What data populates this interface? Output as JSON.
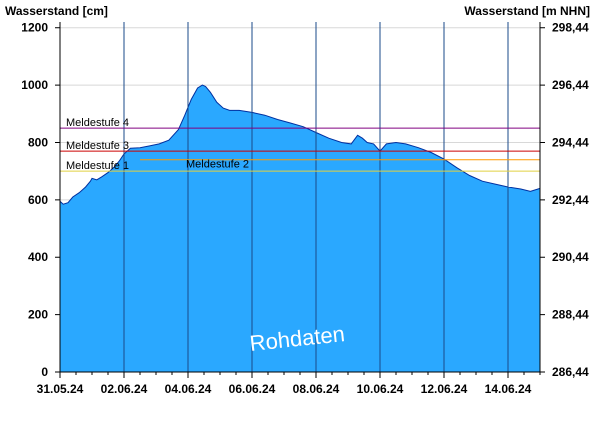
{
  "chart_data": {
    "type": "area",
    "left_axis_title": "Wasserstand [cm]",
    "right_axis_title": "Wasserstand [m NHN]",
    "watermark": "Rohdaten",
    "ylim": [
      0,
      1220
    ],
    "y_ticks": [
      0,
      200,
      400,
      600,
      800,
      1000,
      1200
    ],
    "y_tick_labels": [
      "0",
      "200",
      "400",
      "600",
      "800",
      "1000",
      "1200"
    ],
    "right_ticks": [
      {
        "value": 0,
        "label": "286,44"
      },
      {
        "value": 200,
        "label": "288,44"
      },
      {
        "value": 400,
        "label": "290,44"
      },
      {
        "value": 600,
        "label": "292,44"
      },
      {
        "value": 800,
        "label": "294,44"
      },
      {
        "value": 1000,
        "label": "296,44"
      },
      {
        "value": 1200,
        "label": "298,44"
      }
    ],
    "x_range": [
      0,
      15
    ],
    "x_ticks": [
      0,
      2,
      4,
      6,
      8,
      10,
      12,
      14
    ],
    "x_tick_labels": [
      "31.05.24",
      "02.06.24",
      "04.06.24",
      "06.06.24",
      "08.06.24",
      "10.06.24",
      "12.06.24",
      "14.06.24"
    ],
    "x_minor_step": 0.5,
    "series": [
      {
        "color": "#2aa8ff",
        "x": [
          0.0,
          0.1,
          0.25,
          0.4,
          0.6,
          0.8,
          0.95,
          1.0,
          1.15,
          1.3,
          1.5,
          1.7,
          1.85,
          2.0,
          2.2,
          2.5,
          2.8,
          3.1,
          3.4,
          3.7,
          3.9,
          4.1,
          4.3,
          4.45,
          4.55,
          4.7,
          4.9,
          5.1,
          5.3,
          5.6,
          6.0,
          6.4,
          6.8,
          7.2,
          7.6,
          8.0,
          8.4,
          8.8,
          9.1,
          9.3,
          9.45,
          9.6,
          9.8,
          10.0,
          10.2,
          10.5,
          10.8,
          11.2,
          11.6,
          12.0,
          12.4,
          12.8,
          13.2,
          13.6,
          14.0,
          14.4,
          14.7,
          15.0
        ],
        "values": [
          595,
          585,
          590,
          610,
          625,
          645,
          665,
          675,
          670,
          680,
          695,
          715,
          735,
          760,
          780,
          782,
          788,
          795,
          808,
          845,
          895,
          950,
          990,
          1000,
          995,
          975,
          940,
          920,
          912,
          912,
          905,
          895,
          880,
          868,
          855,
          835,
          815,
          800,
          795,
          825,
          815,
          800,
          795,
          770,
          795,
          800,
          795,
          782,
          765,
          742,
          712,
          685,
          665,
          655,
          645,
          638,
          630,
          640
        ]
      }
    ],
    "levels": [
      {
        "name": "Meldestufe 4",
        "value": 850,
        "color": "#800080"
      },
      {
        "name": "Meldestufe 3",
        "value": 770,
        "color": "#cc0000"
      },
      {
        "name": "Meldestufe 2",
        "value": 740,
        "color": "#ff9900"
      },
      {
        "name": "Meldestufe 1",
        "value": 700,
        "color": "#e0d040"
      }
    ],
    "grid": true
  }
}
